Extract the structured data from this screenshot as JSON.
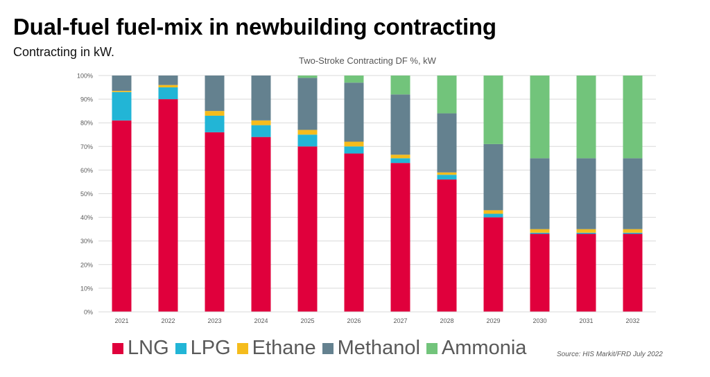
{
  "header": {
    "title": "Dual-fuel fuel-mix in newbuilding contracting",
    "subtitle": "Contracting in kW."
  },
  "source": "Source: HIS Markit/FRD July 2022",
  "chart_data": {
    "type": "bar",
    "stacked": true,
    "title": "Two-Stroke Contracting DF %, kW",
    "xlabel": "",
    "ylabel": "",
    "ylim": [
      0,
      100
    ],
    "yticks": [
      "0%",
      "10%",
      "20%",
      "30%",
      "40%",
      "50%",
      "60%",
      "70%",
      "80%",
      "90%",
      "100%"
    ],
    "grid": true,
    "legend_position": "bottom",
    "categories": [
      "2021",
      "2022",
      "2023",
      "2024",
      "2025",
      "2026",
      "2027",
      "2028",
      "2029",
      "2030",
      "2031",
      "2032"
    ],
    "series": [
      {
        "name": "LNG",
        "color": "#E0003C",
        "values": [
          81,
          90,
          76,
          74,
          70,
          67,
          63,
          56,
          40,
          33,
          33,
          33
        ]
      },
      {
        "name": "LPG",
        "color": "#22B5D6",
        "values": [
          12,
          5,
          7,
          5,
          5,
          3,
          2,
          2,
          1.5,
          0.5,
          0.5,
          0.5
        ]
      },
      {
        "name": "Ethane",
        "color": "#F5BC1C",
        "values": [
          0.5,
          1,
          2,
          2,
          2,
          2,
          1.5,
          1,
          1.5,
          1.5,
          1.5,
          1.5
        ]
      },
      {
        "name": "Methanol",
        "color": "#64818F",
        "values": [
          6.5,
          4,
          15,
          19,
          22,
          25,
          25.5,
          25,
          28,
          30,
          30,
          30
        ]
      },
      {
        "name": "Ammonia",
        "color": "#72C47B",
        "values": [
          0,
          0,
          0,
          0,
          1,
          3,
          8,
          16,
          29,
          35,
          35,
          35
        ]
      }
    ]
  }
}
